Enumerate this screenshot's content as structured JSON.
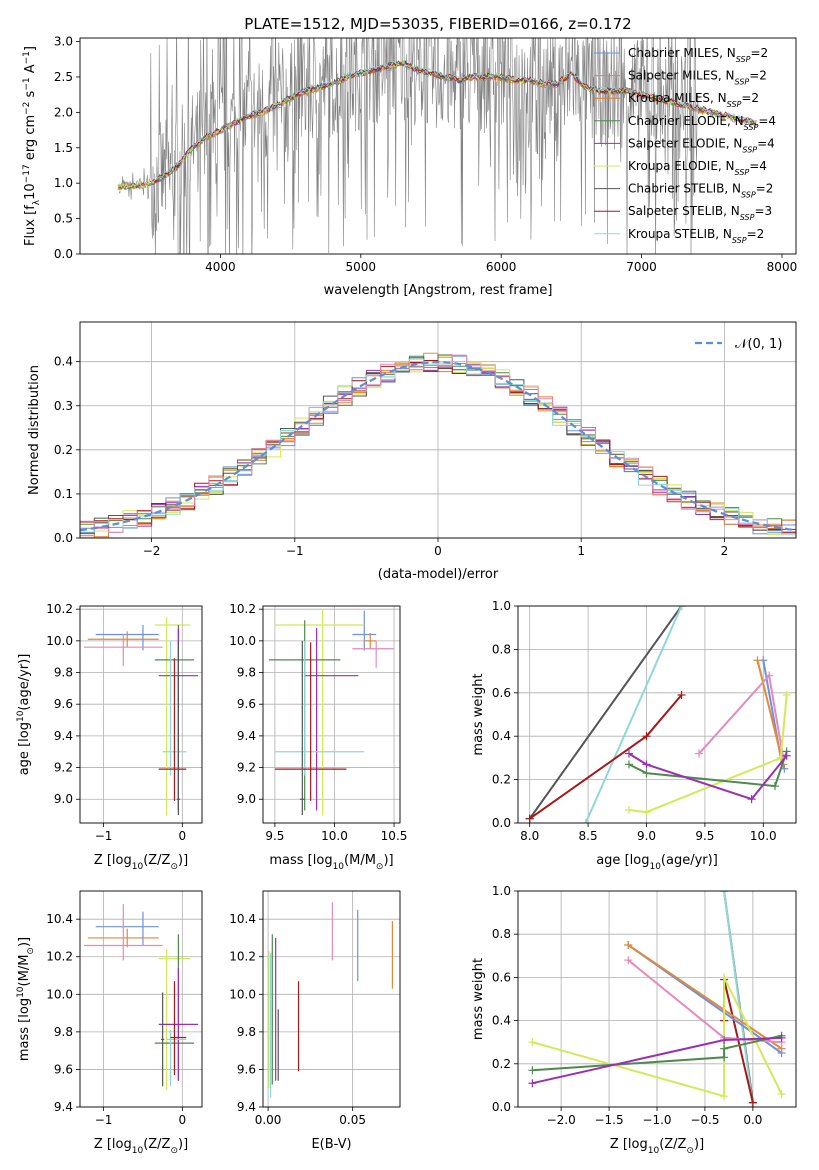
{
  "figure_title": "PLATE=1512, MJD=53035, FIBERID=0166, z=0.172",
  "colors": {
    "chabrier_miles": "#6f8fe0",
    "salpeter_miles": "#e08a3a",
    "kroupa_miles": "#e07b2a",
    "chabrier_elodie": "#4e8a4e",
    "salpeter_elodie": "#9a2fb5",
    "kroupa_elodie": "#d4e85a",
    "chabrier_stelib": "#555555",
    "salpeter_stelib": "#a81818",
    "kroupa_stelib": "#8fd8d8",
    "data": "#808080",
    "grid": "#b0b0b0",
    "pink": "#e68ab8",
    "normal": "#5b8fd6"
  },
  "chart_data": [
    {
      "id": "spectrum",
      "type": "line",
      "title": "PLATE=1512, MJD=53035, FIBERID=0166, z=0.172",
      "xlabel": "wavelength [Angstrom, rest frame]",
      "ylabel_parts": [
        "Flux [f",
        "λ",
        "10",
        "−17",
        " erg cm",
        "−2",
        " s",
        "−1",
        " A",
        "−1",
        "]"
      ],
      "xlim": [
        3000,
        8100
      ],
      "ylim": [
        0,
        3.05
      ],
      "xticks": [
        4000,
        5000,
        6000,
        7000,
        8000
      ],
      "yticks": [
        0.0,
        0.5,
        1.0,
        1.5,
        2.0,
        2.5,
        3.0
      ],
      "legend": [
        "Chabrier MILES, N_SSP=2",
        "Salpeter MILES, N_SSP=2",
        "Kroupa MILES, N_SSP=2",
        "Chabrier ELODIE, N_SSP=4",
        "Salpeter ELODIE, N_SSP=4",
        "Kroupa ELODIE, N_SSP=4",
        "Chabrier STELIB, N_SSP=2",
        "Salpeter STELIB, N_SSP=3",
        "Kroupa STELIB, N_SSP=2"
      ],
      "legend_position": "top-right",
      "model_continuum": {
        "x": [
          3270,
          3400,
          3500,
          3600,
          3700,
          3800,
          3900,
          4000,
          4100,
          4200,
          4300,
          4400,
          4500,
          4600,
          4700,
          4800,
          4900,
          5000,
          5100,
          5200,
          5300,
          5400,
          5500,
          5600,
          5700,
          5800,
          5900,
          6000,
          6100,
          6200,
          6300,
          6400,
          6500,
          6600,
          6700,
          6800,
          6900,
          7000,
          7100,
          7200,
          7300,
          7400,
          7500,
          7600,
          7700,
          7820
        ],
        "y": [
          0.95,
          0.97,
          1.0,
          1.1,
          1.25,
          1.5,
          1.65,
          1.75,
          1.85,
          1.95,
          2.0,
          2.1,
          2.2,
          2.3,
          2.35,
          2.4,
          2.5,
          2.55,
          2.6,
          2.65,
          2.7,
          2.6,
          2.55,
          2.5,
          2.45,
          2.5,
          2.5,
          2.5,
          2.45,
          2.45,
          2.4,
          2.4,
          2.55,
          2.35,
          2.3,
          2.3,
          2.3,
          2.25,
          2.2,
          2.15,
          2.1,
          2.05,
          2.0,
          1.95,
          1.9,
          1.85
        ]
      },
      "data_range": [
        3280,
        7420
      ]
    },
    {
      "id": "residuals",
      "type": "step",
      "xlabel": "(data-model)/error",
      "ylabel": "Normed distribution",
      "xlim": [
        -2.5,
        2.5
      ],
      "ylim": [
        0,
        0.49
      ],
      "xticks": [
        -2,
        -1,
        0,
        1,
        2
      ],
      "yticks": [
        0.0,
        0.1,
        0.2,
        0.3,
        0.4
      ],
      "legend": [
        "𝒩(0, 1)"
      ],
      "legend_position": "top-right",
      "bin_width": 0.1
    },
    {
      "id": "age_vs_Z",
      "type": "errorbar",
      "xlabel_parts": [
        "Z [log",
        "10",
        "(Z/Z",
        "⊙",
        ")]"
      ],
      "ylabel_parts": [
        "age  [log",
        "10",
        "(age/yr)]"
      ],
      "xlim": [
        -1.3,
        0.25
      ],
      "ylim": [
        8.85,
        10.22
      ],
      "xticks": [
        -1,
        0
      ],
      "yticks": [
        9.0,
        9.2,
        9.4,
        9.6,
        9.8,
        10.0,
        10.2
      ],
      "points": [
        {
          "c": "chabrier_miles",
          "x": -0.5,
          "y": 10.04,
          "xerr": [
            0.6,
            0.2
          ],
          "yerr": [
            0.1,
            0.06
          ]
        },
        {
          "c": "salpeter_miles",
          "x": -0.7,
          "y": 10.01,
          "xerr": [
            0.5,
            0.4
          ],
          "yerr": [
            0.05,
            0.05
          ]
        },
        {
          "c": "pink",
          "x": -0.75,
          "y": 9.96,
          "xerr": [
            0.5,
            0.5
          ],
          "yerr": [
            0.12,
            0.08
          ]
        },
        {
          "c": "kroupa_elodie",
          "x": -0.2,
          "y": 10.1,
          "xerr": [
            0.15,
            0.3
          ],
          "yerr": [
            1.2,
            0.05
          ]
        },
        {
          "c": "chabrier_elodie",
          "x": -0.05,
          "y": 9.88,
          "xerr": [
            0.3,
            0.2
          ],
          "yerr": [
            0.95,
            0.22
          ]
        },
        {
          "c": "salpeter_elodie",
          "x": -0.05,
          "y": 9.78,
          "xerr": [
            0.25,
            0.25
          ],
          "yerr": [
            0.85,
            0.3
          ]
        },
        {
          "c": "kroupa_stelib",
          "x": -0.15,
          "y": 9.3,
          "xerr": [
            0.1,
            0.2
          ],
          "yerr": [
            0.15,
            0.7
          ]
        },
        {
          "c": "salpeter_stelib",
          "x": -0.1,
          "y": 9.19,
          "xerr": [
            0.2,
            0.15
          ],
          "yerr": [
            0.2,
            0.7
          ]
        },
        {
          "c": "chabrier_stelib",
          "x": -0.05,
          "y": 9.0,
          "xerr": [
            0.02,
            0.02
          ],
          "yerr": [
            0.1,
            1.0
          ]
        }
      ]
    },
    {
      "id": "age_vs_mass",
      "type": "errorbar",
      "xlabel_parts": [
        "mass [log",
        "10",
        "(M/M",
        "⊙",
        ")]"
      ],
      "ylabel": "",
      "xlim": [
        9.4,
        10.55
      ],
      "ylim": [
        8.85,
        10.22
      ],
      "xticks": [
        9.5,
        10.0,
        10.5
      ],
      "yticks": [
        9.0,
        9.2,
        9.4,
        9.6,
        9.8,
        10.0,
        10.2
      ],
      "points": [
        {
          "c": "chabrier_miles",
          "x": 10.25,
          "y": 10.04,
          "xerr": [
            0.1,
            0.1
          ],
          "yerr": [
            0.1,
            0.15
          ]
        },
        {
          "c": "salpeter_miles",
          "x": 10.3,
          "y": 10.0,
          "xerr": [
            0.05,
            0.05
          ],
          "yerr": [
            0.05,
            0.05
          ]
        },
        {
          "c": "pink",
          "x": 10.35,
          "y": 9.95,
          "xerr": [
            0.2,
            0.15
          ],
          "yerr": [
            0.12,
            0.05
          ]
        },
        {
          "c": "kroupa_elodie",
          "x": 9.9,
          "y": 10.1,
          "xerr": [
            0.4,
            0.35
          ],
          "yerr": [
            1.2,
            0.1
          ]
        },
        {
          "c": "chabrier_elodie",
          "x": 9.75,
          "y": 9.88,
          "xerr": [
            0.3,
            0.3
          ],
          "yerr": [
            0.95,
            0.25
          ]
        },
        {
          "c": "salpeter_elodie",
          "x": 9.85,
          "y": 9.78,
          "xerr": [
            0.1,
            0.35
          ],
          "yerr": [
            0.85,
            0.3
          ]
        },
        {
          "c": "kroupa_stelib",
          "x": 9.75,
          "y": 9.3,
          "xerr": [
            0.25,
            0.5
          ],
          "yerr": [
            0.15,
            0.7
          ]
        },
        {
          "c": "salpeter_stelib",
          "x": 9.8,
          "y": 9.19,
          "xerr": [
            0.3,
            0.3
          ],
          "yerr": [
            0.2,
            0.8
          ]
        },
        {
          "c": "chabrier_stelib",
          "x": 9.73,
          "y": 9.0,
          "xerr": [
            0.02,
            0.02
          ],
          "yerr": [
            0.1,
            1.0
          ]
        }
      ]
    },
    {
      "id": "weight_vs_age",
      "type": "line",
      "xlabel_parts": [
        "age  [log",
        "10",
        "(age/yr)]"
      ],
      "ylabel": "mass weight",
      "xlim": [
        7.9,
        10.28
      ],
      "ylim": [
        0,
        1.0
      ],
      "xticks": [
        8.0,
        8.5,
        9.0,
        9.5,
        10.0
      ],
      "yticks": [
        0.0,
        0.2,
        0.4,
        0.6,
        0.8,
        1.0
      ],
      "series": [
        {
          "c": "chabrier_stelib",
          "x": [
            8.0,
            9.3
          ],
          "y": [
            0.02,
            1.0
          ]
        },
        {
          "c": "kroupa_stelib",
          "x": [
            8.48,
            9.3
          ],
          "y": [
            0.0,
            1.0
          ]
        },
        {
          "c": "salpeter_stelib",
          "x": [
            8.0,
            9.0,
            9.3
          ],
          "y": [
            0.02,
            0.4,
            0.59
          ]
        },
        {
          "c": "chabrier_miles",
          "x": [
            10.0,
            10.15,
            10.18
          ],
          "y": [
            0.75,
            0.3,
            0.25
          ]
        },
        {
          "c": "salpeter_miles",
          "x": [
            9.95,
            10.17
          ],
          "y": [
            0.75,
            0.27
          ]
        },
        {
          "c": "pink",
          "x": [
            9.45,
            10.05,
            10.17
          ],
          "y": [
            0.32,
            0.68,
            0.3
          ]
        },
        {
          "c": "kroupa_elodie",
          "x": [
            8.85,
            9.0,
            10.15,
            10.2
          ],
          "y": [
            0.06,
            0.05,
            0.3,
            0.59
          ]
        },
        {
          "c": "chabrier_elodie",
          "x": [
            8.85,
            9.0,
            10.1,
            10.2
          ],
          "y": [
            0.27,
            0.23,
            0.17,
            0.33
          ]
        },
        {
          "c": "salpeter_elodie",
          "x": [
            8.85,
            9.0,
            9.9,
            10.2
          ],
          "y": [
            0.32,
            0.27,
            0.11,
            0.31
          ]
        }
      ]
    },
    {
      "id": "mass_vs_Z",
      "type": "errorbar",
      "xlabel_parts": [
        "Z [log",
        "10",
        "(Z/Z",
        "⊙",
        ")]"
      ],
      "ylabel_parts": [
        "mass [log",
        "10",
        "(M/M",
        "⊙",
        ")]"
      ],
      "xlim": [
        -1.3,
        0.25
      ],
      "ylim": [
        9.4,
        10.55
      ],
      "xticks": [
        -1,
        0
      ],
      "yticks": [
        9.4,
        9.6,
        9.8,
        10.0,
        10.2,
        10.4
      ],
      "points": [
        {
          "c": "chabrier_miles",
          "x": -0.5,
          "y": 10.36,
          "xerr": [
            0.6,
            0.2
          ],
          "yerr": [
            0.1,
            0.08
          ]
        },
        {
          "c": "salpeter_miles",
          "x": -0.7,
          "y": 10.3,
          "xerr": [
            0.5,
            0.4
          ],
          "yerr": [
            0.05,
            0.05
          ]
        },
        {
          "c": "pink",
          "x": -0.75,
          "y": 10.26,
          "xerr": [
            0.5,
            0.5
          ],
          "yerr": [
            0.08,
            0.22
          ]
        },
        {
          "c": "kroupa_elodie",
          "x": -0.2,
          "y": 10.19,
          "xerr": [
            0.1,
            0.3
          ],
          "yerr": [
            0.7,
            0.05
          ]
        },
        {
          "c": "chabrier_elodie",
          "x": -0.05,
          "y": 9.74,
          "xerr": [
            0.3,
            0.2
          ],
          "yerr": [
            0.2,
            0.58
          ]
        },
        {
          "c": "salpeter_elodie",
          "x": -0.05,
          "y": 9.84,
          "xerr": [
            0.25,
            0.25
          ],
          "yerr": [
            0.3,
            0.3
          ]
        },
        {
          "c": "kroupa_stelib",
          "x": -0.15,
          "y": 9.76,
          "xerr": [
            0.05,
            0.2
          ],
          "yerr": [
            0.25,
            0.05
          ]
        },
        {
          "c": "salpeter_stelib",
          "x": -0.1,
          "y": 9.77,
          "xerr": [
            0.05,
            0.15
          ],
          "yerr": [
            0.2,
            0.3
          ]
        },
        {
          "c": "chabrier_stelib",
          "x": -0.25,
          "y": 9.76,
          "xerr": [
            0.02,
            0.02
          ],
          "yerr": [
            0.25,
            0.25
          ]
        }
      ]
    },
    {
      "id": "mass_vs_ebv",
      "type": "errorbar",
      "xlabel": "E(B-V)",
      "ylabel": "",
      "xlim": [
        -0.003,
        0.078
      ],
      "ylim": [
        9.4,
        10.55
      ],
      "xticks": [
        0.0,
        0.05
      ],
      "yticks": [
        9.4,
        9.6,
        9.8,
        10.0,
        10.2,
        10.4
      ],
      "vbars": [
        {
          "c": "chabrier_miles",
          "x": 0.053,
          "y0": 10.07,
          "y1": 10.45
        },
        {
          "c": "salpeter_miles",
          "x": 0.0735,
          "y0": 10.03,
          "y1": 10.39
        },
        {
          "c": "pink",
          "x": 0.038,
          "y0": 10.18,
          "y1": 10.49
        },
        {
          "c": "kroupa_elodie",
          "x": 0.0005,
          "y0": 9.5,
          "y1": 10.23
        },
        {
          "c": "chabrier_elodie",
          "x": 0.0025,
          "y0": 9.52,
          "y1": 10.32
        },
        {
          "c": "salpeter_elodie",
          "x": 0.0045,
          "y0": 9.54,
          "y1": 10.3
        },
        {
          "c": "kroupa_stelib",
          "x": 0.0015,
          "y0": 9.45,
          "y1": 10.22
        },
        {
          "c": "salpeter_stelib",
          "x": 0.018,
          "y0": 9.59,
          "y1": 10.07
        },
        {
          "c": "chabrier_stelib",
          "x": 0.006,
          "y0": 9.54,
          "y1": 9.92
        }
      ]
    },
    {
      "id": "weight_vs_Z",
      "type": "line",
      "xlabel_parts": [
        "Z [log",
        "10",
        "(Z/Z",
        "⊙",
        ")]"
      ],
      "ylabel": "mass weight",
      "xlim": [
        -2.45,
        0.45
      ],
      "ylim": [
        0,
        1.0
      ],
      "xticks": [
        -2.0,
        -1.5,
        -1.0,
        -0.5,
        0.0
      ],
      "yticks": [
        0.0,
        0.2,
        0.4,
        0.6,
        0.8,
        1.0
      ],
      "series": [
        {
          "c": "chabrier_stelib",
          "x": [
            -0.3,
            0.0
          ],
          "y": [
            1.0,
            0.02
          ]
        },
        {
          "c": "kroupa_stelib",
          "x": [
            -0.3,
            0.0
          ],
          "y": [
            1.0,
            0.0
          ]
        },
        {
          "c": "salpeter_stelib",
          "x": [
            0.0,
            -0.3,
            -0.3
          ],
          "y": [
            0.02,
            0.59,
            0.4
          ]
        },
        {
          "c": "chabrier_miles",
          "x": [
            -1.3,
            0.3
          ],
          "y": [
            0.75,
            0.25
          ]
        },
        {
          "c": "salpeter_miles",
          "x": [
            -1.3,
            0.3
          ],
          "y": [
            0.75,
            0.27
          ]
        },
        {
          "c": "pink",
          "x": [
            -1.3,
            -0.3,
            0.3
          ],
          "y": [
            0.68,
            0.32,
            0.3
          ]
        },
        {
          "c": "kroupa_elodie",
          "x": [
            -2.3,
            -0.3,
            -0.3,
            0.3
          ],
          "y": [
            0.3,
            0.05,
            0.6,
            0.06
          ]
        },
        {
          "c": "chabrier_elodie",
          "x": [
            -2.3,
            -0.3,
            -0.3,
            0.3
          ],
          "y": [
            0.17,
            0.23,
            0.27,
            0.33
          ]
        },
        {
          "c": "salpeter_elodie",
          "x": [
            -2.3,
            -0.3,
            0.3
          ],
          "y": [
            0.11,
            0.31,
            0.32
          ]
        }
      ]
    }
  ]
}
